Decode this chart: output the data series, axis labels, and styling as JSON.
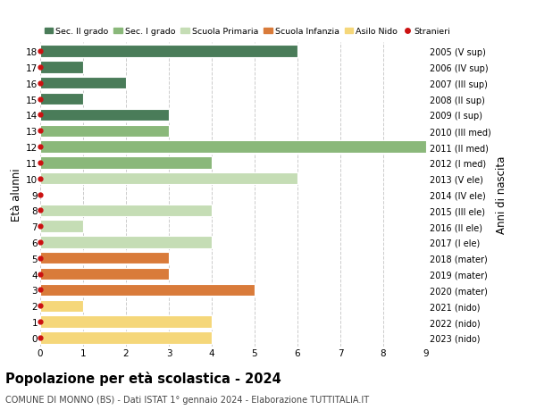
{
  "ages": [
    18,
    17,
    16,
    15,
    14,
    13,
    12,
    11,
    10,
    9,
    8,
    7,
    6,
    5,
    4,
    3,
    2,
    1,
    0
  ],
  "years": [
    "2005 (V sup)",
    "2006 (IV sup)",
    "2007 (III sup)",
    "2008 (II sup)",
    "2009 (I sup)",
    "2010 (III med)",
    "2011 (II med)",
    "2012 (I med)",
    "2013 (V ele)",
    "2014 (IV ele)",
    "2015 (III ele)",
    "2016 (II ele)",
    "2017 (I ele)",
    "2018 (mater)",
    "2019 (mater)",
    "2020 (mater)",
    "2021 (nido)",
    "2022 (nido)",
    "2023 (nido)"
  ],
  "values": [
    6,
    1,
    2,
    1,
    3,
    3,
    9,
    4,
    6,
    0,
    4,
    1,
    4,
    3,
    3,
    5,
    1,
    4,
    4
  ],
  "colors_by_age": {
    "18": "#4a7c59",
    "17": "#4a7c59",
    "16": "#4a7c59",
    "15": "#4a7c59",
    "14": "#4a7c59",
    "13": "#8ab87a",
    "12": "#8ab87a",
    "11": "#8ab87a",
    "10": "#c5ddb5",
    "9": "#c5ddb5",
    "8": "#c5ddb5",
    "7": "#c5ddb5",
    "6": "#c5ddb5",
    "5": "#d97b3a",
    "4": "#d97b3a",
    "3": "#d97b3a",
    "2": "#f5d77a",
    "1": "#f5d77a",
    "0": "#f5d77a"
  },
  "legend_colors": {
    "Sec. II grado": "#4a7c59",
    "Sec. I grado": "#8ab87a",
    "Scuola Primaria": "#c5ddb5",
    "Scuola Infanzia": "#d97b3a",
    "Asilo Nido": "#f5d77a"
  },
  "stranieri_color": "#cc1111",
  "ylabel": "Età alunni",
  "ylabel_right": "Anni di nascita",
  "title": "Popolazione per età scolastica - 2024",
  "subtitle": "COMUNE DI MONNO (BS) - Dati ISTAT 1° gennaio 2024 - Elaborazione TUTTITALIA.IT",
  "xlim": [
    0,
    9
  ],
  "ylim_min": -0.55,
  "ylim_max": 18.55,
  "background_color": "#ffffff",
  "grid_color": "#cccccc",
  "bar_height": 0.75
}
